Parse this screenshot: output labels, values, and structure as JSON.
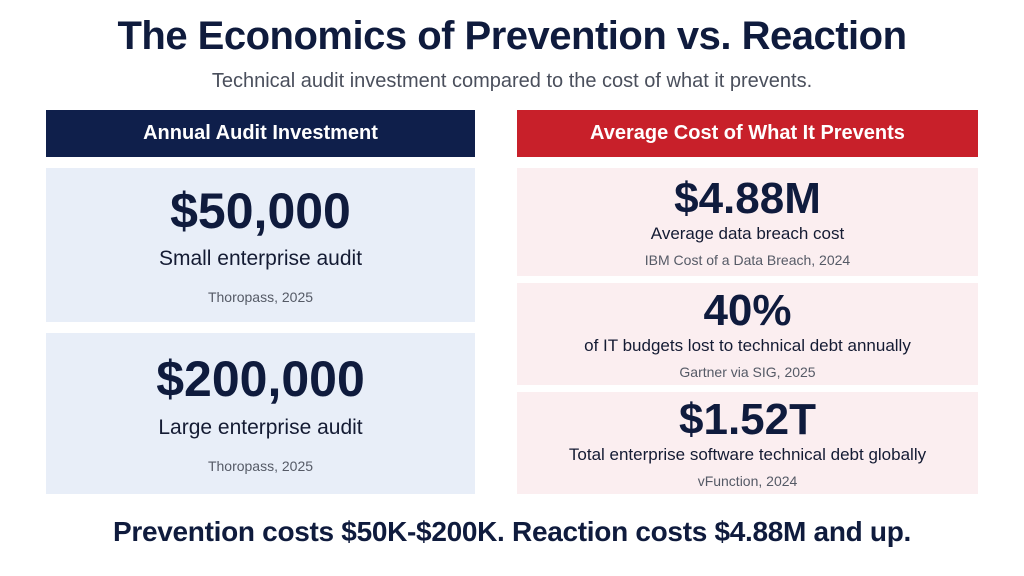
{
  "title": "The Economics of Prevention vs. Reaction",
  "subtitle": "Technical audit investment compared to the cost of what it prevents.",
  "left": {
    "header": "Annual Audit Investment",
    "cards": [
      {
        "value": "$50,000",
        "description": "Small enterprise audit",
        "source": "Thoropass, 2025"
      },
      {
        "value": "$200,000",
        "description": "Large enterprise audit",
        "source": "Thoropass, 2025"
      }
    ]
  },
  "right": {
    "header": "Average Cost of What It Prevents",
    "cards": [
      {
        "value": "$4.88M",
        "description": "Average data breach cost",
        "source": "IBM Cost of a Data Breach, 2024"
      },
      {
        "value": "40%",
        "description": "of IT budgets lost to technical debt annually",
        "source": "Gartner via SIG, 2025"
      },
      {
        "value": "$1.52T",
        "description": "Total enterprise software technical debt globally",
        "source": "vFunction, 2024"
      }
    ]
  },
  "footer": "Prevention costs $50K-$200K. Reaction costs $4.88M and up."
}
